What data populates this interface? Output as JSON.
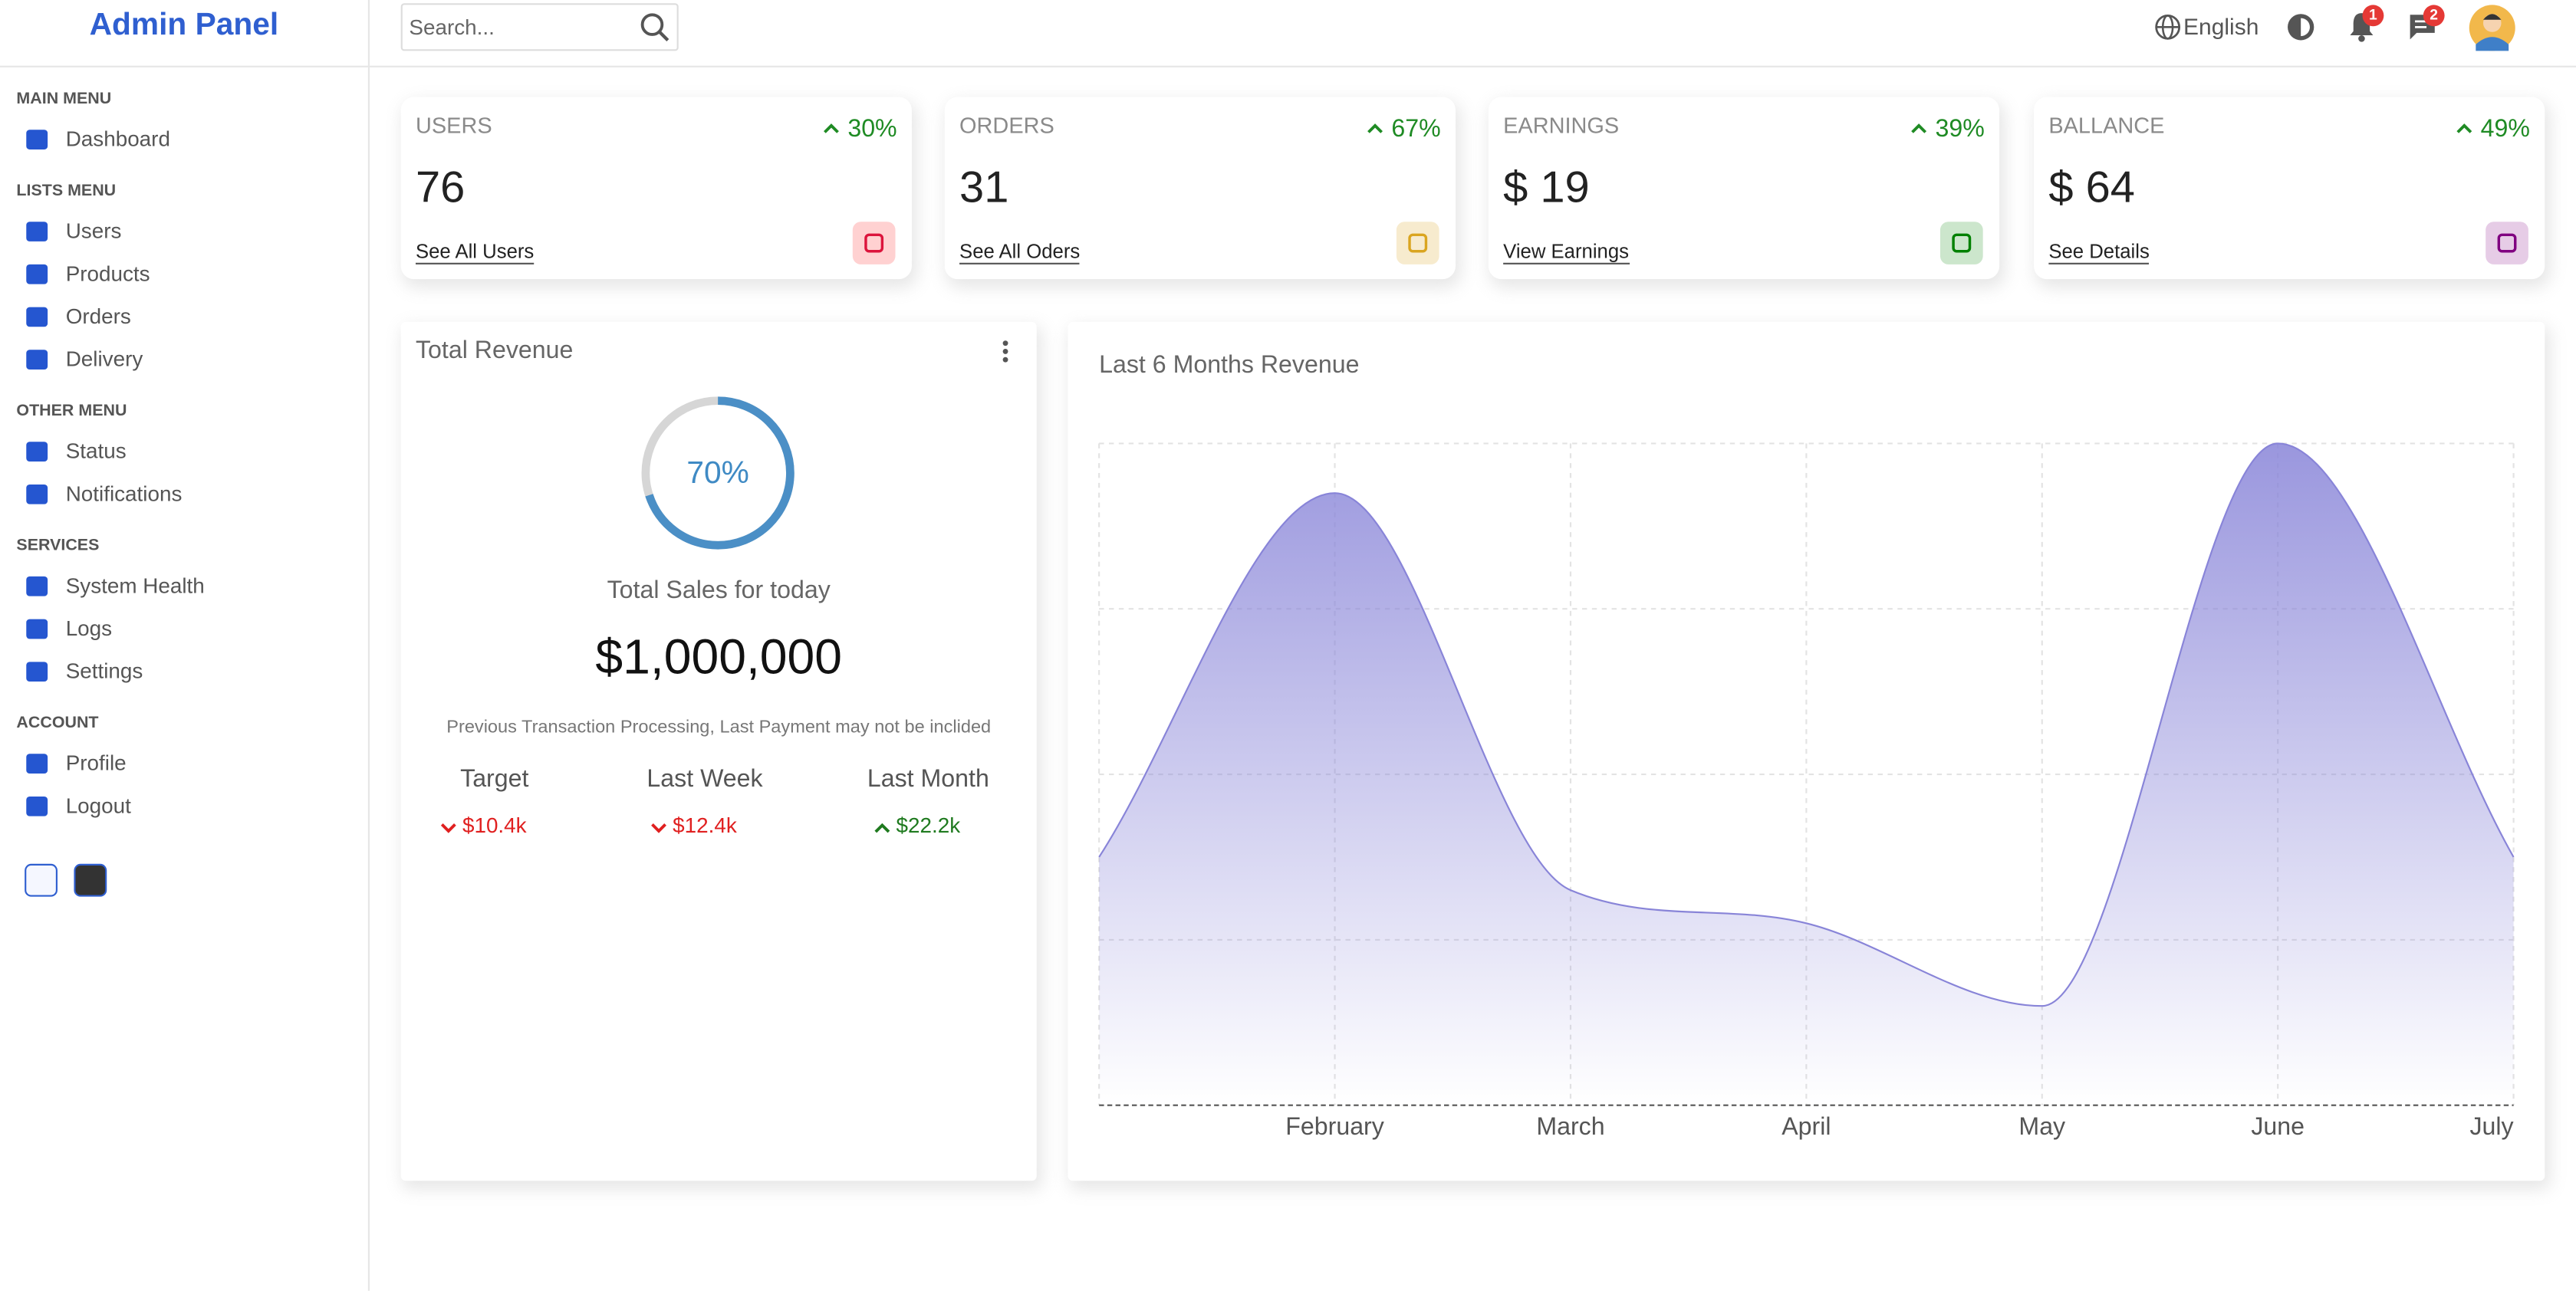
{
  "sidebar": {
    "brand": "Admin Panel",
    "sections": [
      {
        "title": "MAIN MENU",
        "items": [
          "Dashboard"
        ]
      },
      {
        "title": "LISTS MENU",
        "items": [
          "Users",
          "Products",
          "Orders",
          "Delivery"
        ]
      },
      {
        "title": "OTHER MENU",
        "items": [
          "Status",
          "Notifications"
        ]
      },
      {
        "title": "SERVICES",
        "items": [
          "System Health",
          "Logs",
          "Settings"
        ]
      },
      {
        "title": "ACCOUNT",
        "items": [
          "Profile",
          "Logout"
        ]
      }
    ]
  },
  "topbar": {
    "search_placeholder": "Search...",
    "language": "English",
    "notifications": 1,
    "messages": 2
  },
  "widgets": [
    {
      "title": "USERS",
      "change": "30%",
      "value": "76",
      "link": "See All Users"
    },
    {
      "title": "ORDERS",
      "change": "67%",
      "value": "31",
      "link": "See All Oders"
    },
    {
      "title": "EARNINGS",
      "change": "39%",
      "value": "$ 19",
      "link": "View Earnings"
    },
    {
      "title": "BALLANCE",
      "change": "49%",
      "value": "$ 64",
      "link": "See Details"
    }
  ],
  "revenue": {
    "title": "Total Revenue",
    "progress": 70,
    "progress_label": "70%",
    "subtitle": "Total Sales for today",
    "amount": "$1,000,000",
    "note": "Previous Transaction Processing, Last Payment may not be inclided",
    "summary": [
      {
        "label": "Target",
        "value": "$10.4k",
        "trend": "down"
      },
      {
        "label": "Last Week",
        "value": "$12.4k",
        "trend": "down"
      },
      {
        "label": "Last Month",
        "value": "$22.2k",
        "trend": "up"
      }
    ]
  },
  "chart_data": {
    "type": "area",
    "title": "Last 6 Months Revenue",
    "categories": [
      null,
      "February",
      "March",
      "April",
      "May",
      "June",
      "July"
    ],
    "values": [
      1500,
      3700,
      1300,
      1100,
      600,
      4000,
      1500
    ],
    "color": "#8884d8",
    "ylim": [
      0,
      4000
    ],
    "grid": true
  }
}
